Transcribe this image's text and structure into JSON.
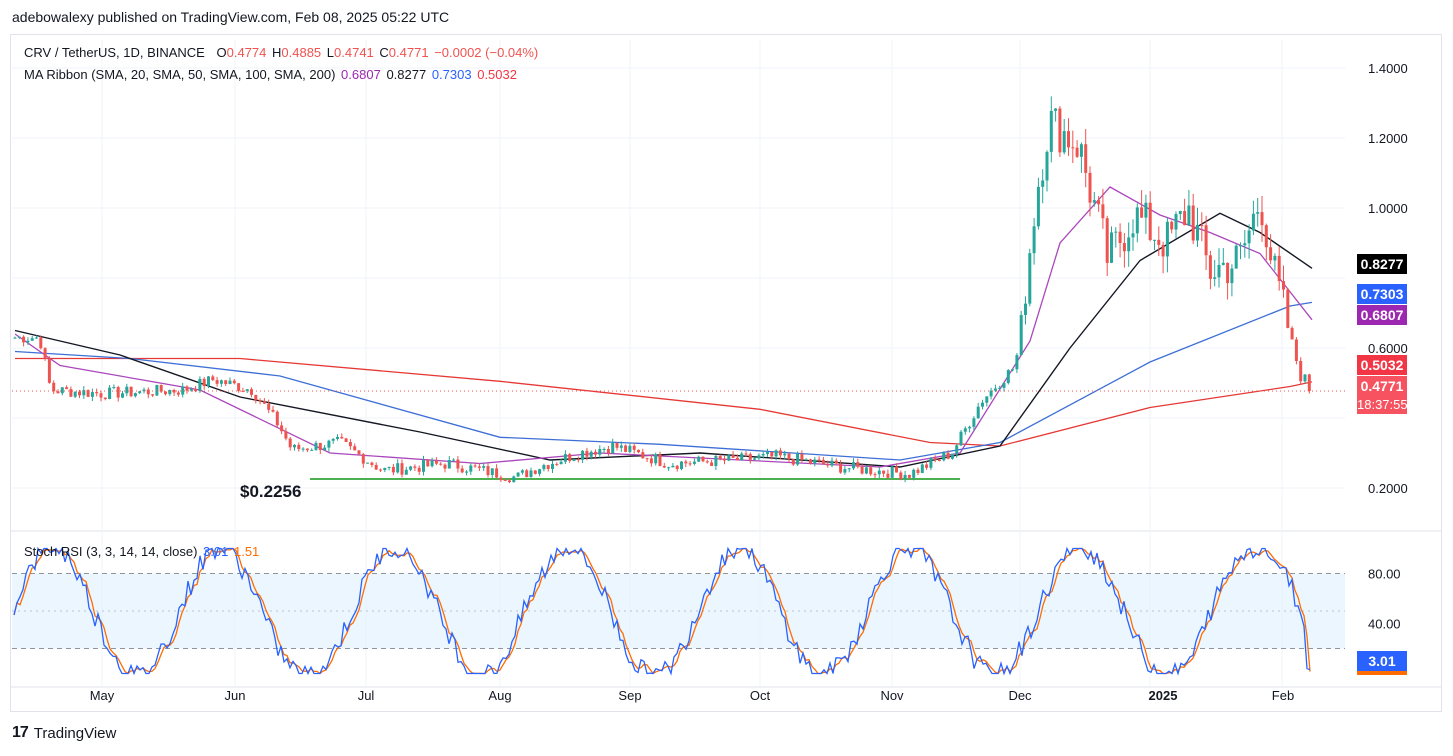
{
  "header": {
    "text": "adebowalexy published on TradingView.com, Feb 08, 2025 05:22 UTC"
  },
  "legend": {
    "symbol": "CRV / TetherUS, 1D, BINANCE",
    "o_label": "O",
    "o": "0.4774",
    "h_label": "H",
    "h": "0.4885",
    "l_label": "L",
    "l": "0.4741",
    "c_label": "C",
    "c": "0.4771",
    "change": "−0.0002 (−0.04%)",
    "ma_label": "MA Ribbon (SMA, 20, SMA, 50, SMA, 100, SMA, 200)",
    "ma20": "0.6807",
    "ma50": "0.8277",
    "ma100": "0.7303",
    "ma200": "0.5032",
    "stoch_label": "Stoch RSI (3, 3, 14, 14, close)",
    "stoch_k": "3.01",
    "stoch_d": "1.51"
  },
  "price_tags": {
    "ma50": "0.8277",
    "ma100": "0.7303",
    "ma20": "0.6807",
    "ma200": "0.5032",
    "last": "0.4771",
    "countdown": "18:37:55",
    "stoch_k": "3.01"
  },
  "annotation": {
    "support_low": "$0.2256"
  },
  "footer": {
    "brand": "TradingView",
    "logo": "17"
  },
  "colors": {
    "up": "#26a69a",
    "down": "#ef5350",
    "ma20": "#ab47bc",
    "ma50": "#131722",
    "ma100": "#3d6fd6",
    "ma200": "#e53935",
    "support": "#4caf50",
    "stoch_k": "#2962ff",
    "stoch_d": "#ff6d00",
    "stoch_band": "#e3f2fd"
  },
  "chart_data": [
    {
      "type": "candlestick",
      "title": "CRV / TetherUS, 1D, BINANCE",
      "x_ticks": [
        "May",
        "Jun",
        "Jul",
        "Aug",
        "Sep",
        "Oct",
        "Nov",
        "Dec",
        "2025",
        "Feb"
      ],
      "y_ticks": [
        "1.4000",
        "1.2000",
        "1.0000",
        "0.6000",
        "0.2000"
      ],
      "ylim": [
        0.08,
        1.48
      ],
      "support_level": 0.2256,
      "ohlc_keypoints": [
        [
          "Apr 14",
          0.63
        ],
        [
          "Apr 17",
          0.48
        ],
        [
          "May 01",
          0.47
        ],
        [
          "May 20",
          0.48
        ],
        [
          "May 27",
          0.51
        ],
        [
          "Jun 05",
          0.48
        ],
        [
          "Jun 11",
          0.38
        ],
        [
          "Jun 14",
          0.31
        ],
        [
          "Jun 25",
          0.33
        ],
        [
          "Jul 05",
          0.25
        ],
        [
          "Jul 20",
          0.27
        ],
        [
          "Aug 05",
          0.23
        ],
        [
          "Aug 10",
          0.26
        ],
        [
          "Aug 20",
          0.3
        ],
        [
          "Aug 28",
          0.32
        ],
        [
          "Sep 10",
          0.27
        ],
        [
          "Sep 25",
          0.28
        ],
        [
          "Oct 05",
          0.29
        ],
        [
          "Oct 20",
          0.26
        ],
        [
          "Nov 05",
          0.24
        ],
        [
          "Nov 15",
          0.3
        ],
        [
          "Nov 22",
          0.45
        ],
        [
          "Nov 30",
          0.55
        ],
        [
          "Dec 05",
          1.05
        ],
        [
          "Dec 08",
          1.25
        ],
        [
          "Dec 15",
          1.18
        ],
        [
          "Dec 22",
          0.85
        ],
        [
          "Dec 28",
          0.98
        ],
        [
          "Jan 05",
          0.9
        ],
        [
          "Jan 10",
          1.0
        ],
        [
          "Jan 15",
          0.82
        ],
        [
          "Jan 22",
          0.85
        ],
        [
          "Jan 27",
          1.03
        ],
        [
          "Jan 30",
          0.82
        ],
        [
          "Feb 03",
          0.62
        ],
        [
          "Feb 05",
          0.52
        ],
        [
          "Feb 07",
          0.5
        ],
        [
          "Feb 08",
          0.4771
        ]
      ],
      "series": [
        {
          "name": "SMA 20",
          "last": 0.6807
        },
        {
          "name": "SMA 50",
          "last": 0.8277
        },
        {
          "name": "SMA 100",
          "last": 0.7303
        },
        {
          "name": "SMA 200",
          "last": 0.5032
        }
      ],
      "last_price": 0.4771,
      "grid": true
    },
    {
      "type": "line",
      "title": "Stoch RSI (3, 3, 14, 14, close)",
      "y_ticks": [
        "80.00",
        "40.00"
      ],
      "ylim": [
        -10,
        110
      ],
      "bands": [
        20,
        50,
        80
      ],
      "series": [
        {
          "name": "K",
          "last": 3.01
        },
        {
          "name": "D",
          "last": 1.51
        }
      ]
    }
  ]
}
